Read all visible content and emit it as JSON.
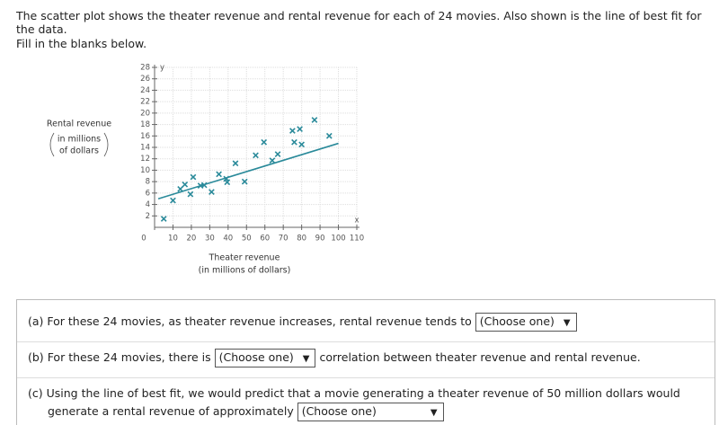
{
  "intro": "The scatter plot shows the theater revenue and rental revenue for each of 24 movies. Also shown is the line of best fit for the data.",
  "instruction": "Fill in the blanks below.",
  "chart_data": {
    "type": "scatter",
    "ylabel": "Rental revenue",
    "ylabel_sub": [
      "in millions",
      "of dollars"
    ],
    "xlabel": "Theater revenue",
    "xlabel_sub": "(in millions of dollars)",
    "x_axis_letter": "x",
    "y_axis_letter": "y",
    "xlim": [
      0,
      110
    ],
    "ylim": [
      0,
      28
    ],
    "xticks": [
      0,
      10,
      20,
      30,
      40,
      50,
      60,
      70,
      80,
      90,
      100,
      110
    ],
    "yticks": [
      2,
      4,
      6,
      8,
      10,
      12,
      14,
      16,
      18,
      20,
      22,
      24,
      26,
      28
    ],
    "grid": true,
    "color": "#2a8a9a",
    "x": [
      5,
      10,
      14,
      16.5,
      19.5,
      21,
      25,
      27,
      31,
      35,
      39.5,
      39,
      44,
      49,
      55,
      59.5,
      64,
      67,
      75,
      79,
      76,
      80,
      87,
      95
    ],
    "values": [
      1.5,
      4.7,
      6.7,
      7.5,
      5.8,
      8.8,
      7.3,
      7.4,
      6.2,
      9.3,
      7.9,
      8.5,
      11.2,
      8,
      12.6,
      14.9,
      11.7,
      12.8,
      16.9,
      17.2,
      14.9,
      14.5,
      18.8,
      16
    ],
    "fit_line": {
      "x": [
        2,
        100
      ],
      "y": [
        5,
        14.7
      ]
    }
  },
  "questions": [
    {
      "label": "(a)",
      "text": "For these 24 movies, as theater revenue increases, rental revenue tends to",
      "dropdown": "(Choose one)"
    },
    {
      "label": "(b)",
      "text": "For these 24 movies, there is",
      "dropdown": "(Choose one)",
      "after": "correlation between theater revenue and rental revenue."
    },
    {
      "label": "(c)",
      "text": "Using the line of best fit, we would predict that a movie generating a theater revenue of 50 million dollars would generate a rental revenue of approximately",
      "dropdown": "(Choose one)"
    }
  ]
}
